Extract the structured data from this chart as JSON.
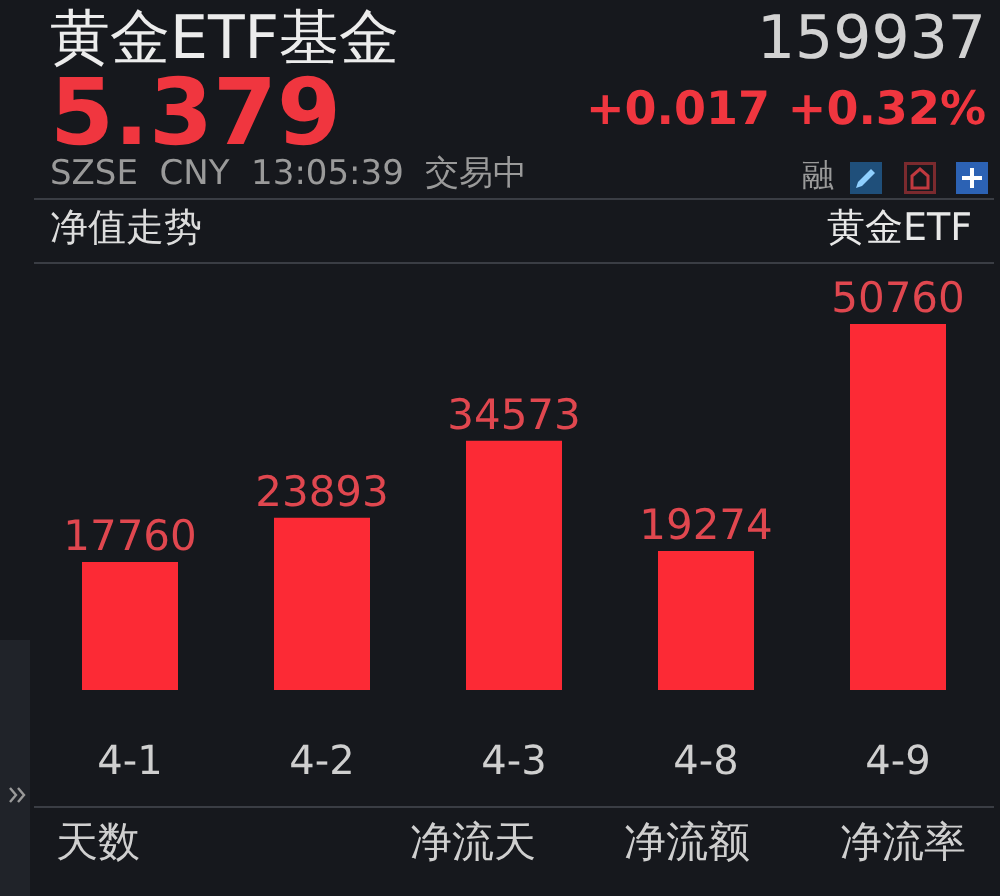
{
  "chart_data": {
    "type": "bar",
    "title": "黄金ETF基金",
    "categories": [
      "4-1",
      "4-2",
      "4-3",
      "4-8",
      "4-9"
    ],
    "values": [
      17760,
      23893,
      34573,
      19274,
      50760
    ],
    "color": "#fc2a35",
    "data_labels": true,
    "tick_labels": "x",
    "annotations": [
      "159937",
      "5.379",
      "+0.017",
      "+0.32%",
      "SZSE  CNY  13:05:39  交易中",
      "融",
      "净值走势",
      "黄金ETF",
      "天数",
      "净流天",
      "净流额",
      "净流率"
    ]
  }
}
